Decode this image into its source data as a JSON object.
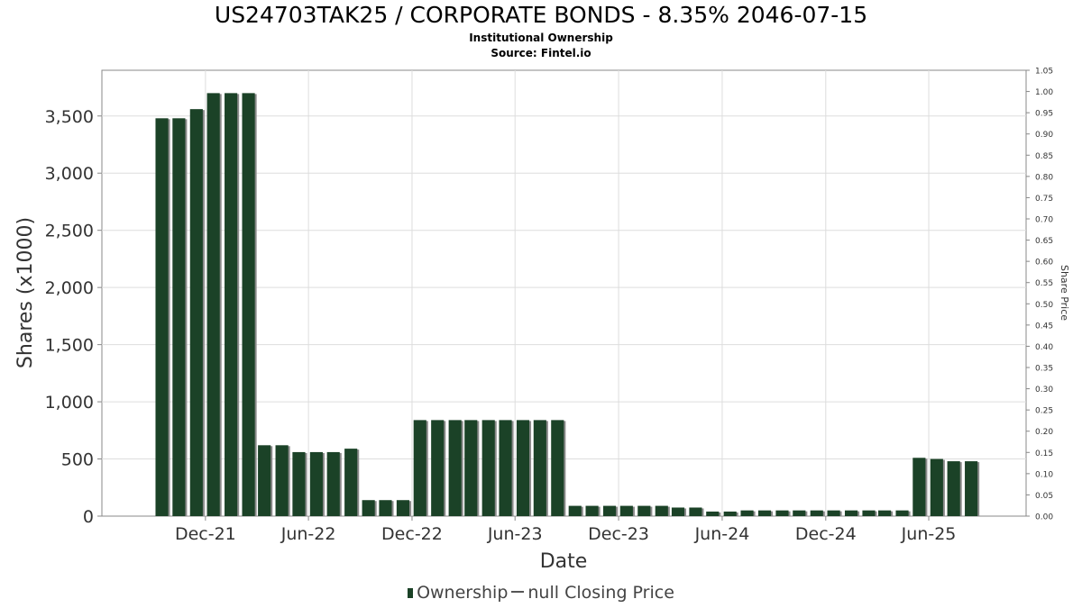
{
  "title": "US24703TAK25 / CORPORATE BONDS - 8.35% 2046-07-15",
  "subtitle": "Institutional Ownership",
  "source": "Source: Fintel.io",
  "legend": {
    "ownership": "Ownership",
    "price": "null Closing Price"
  },
  "colors": {
    "bar": "#1b4227",
    "bar_shadow": "#8a8a8a",
    "grid": "#dddddd",
    "axis": "#888888"
  },
  "chart_data": {
    "type": "bar",
    "title": "US24703TAK25 / CORPORATE BONDS - 8.35% 2046-07-15",
    "xlabel": "Date",
    "ylabel": "Shares (x1000)",
    "y2label": "Share Price",
    "ylim": [
      0,
      3900
    ],
    "y2lim": [
      0,
      1.05
    ],
    "grid": true,
    "legend_position": "bottom",
    "y_ticks": [
      {
        "value": 0,
        "label": "0"
      },
      {
        "value": 500,
        "label": "500"
      },
      {
        "value": 1000,
        "label": "1,000"
      },
      {
        "value": 1500,
        "label": "1,500"
      },
      {
        "value": 2000,
        "label": "2,000"
      },
      {
        "value": 2500,
        "label": "2,500"
      },
      {
        "value": 3000,
        "label": "3,000"
      },
      {
        "value": 3500,
        "label": "3,500"
      }
    ],
    "y2_ticks": [
      "0.00",
      "0.05",
      "0.10",
      "0.15",
      "0.20",
      "0.25",
      "0.30",
      "0.35",
      "0.40",
      "0.45",
      "0.50",
      "0.55",
      "0.60",
      "0.65",
      "0.70",
      "0.75",
      "0.80",
      "0.85",
      "0.90",
      "0.95",
      "1.00",
      "1.05"
    ],
    "x_range": [
      "2021-06-01",
      "2025-11-20"
    ],
    "x_ticks": [
      {
        "date": "2021-12-01",
        "label": "Dec-21"
      },
      {
        "date": "2022-06-01",
        "label": "Jun-22"
      },
      {
        "date": "2022-12-01",
        "label": "Dec-22"
      },
      {
        "date": "2023-06-01",
        "label": "Jun-23"
      },
      {
        "date": "2023-12-01",
        "label": "Dec-23"
      },
      {
        "date": "2024-06-01",
        "label": "Jun-24"
      },
      {
        "date": "2024-12-01",
        "label": "Dec-24"
      },
      {
        "date": "2025-06-01",
        "label": "Jun-25"
      }
    ],
    "series": [
      {
        "name": "Ownership",
        "points": [
          {
            "x": "2021-09-15",
            "y": 3480
          },
          {
            "x": "2021-10-15",
            "y": 3480
          },
          {
            "x": "2021-11-15",
            "y": 3560
          },
          {
            "x": "2021-12-15",
            "y": 3700
          },
          {
            "x": "2022-01-15",
            "y": 3700
          },
          {
            "x": "2022-02-15",
            "y": 3700
          },
          {
            "x": "2022-03-15",
            "y": 620
          },
          {
            "x": "2022-04-15",
            "y": 620
          },
          {
            "x": "2022-05-15",
            "y": 560
          },
          {
            "x": "2022-06-15",
            "y": 560
          },
          {
            "x": "2022-07-15",
            "y": 560
          },
          {
            "x": "2022-08-15",
            "y": 590
          },
          {
            "x": "2022-09-15",
            "y": 140
          },
          {
            "x": "2022-10-15",
            "y": 140
          },
          {
            "x": "2022-11-15",
            "y": 140
          },
          {
            "x": "2022-12-15",
            "y": 840
          },
          {
            "x": "2023-01-15",
            "y": 840
          },
          {
            "x": "2023-02-15",
            "y": 840
          },
          {
            "x": "2023-03-15",
            "y": 840
          },
          {
            "x": "2023-04-15",
            "y": 840
          },
          {
            "x": "2023-05-15",
            "y": 840
          },
          {
            "x": "2023-06-15",
            "y": 840
          },
          {
            "x": "2023-07-15",
            "y": 840
          },
          {
            "x": "2023-08-15",
            "y": 840
          },
          {
            "x": "2023-09-15",
            "y": 90
          },
          {
            "x": "2023-10-15",
            "y": 90
          },
          {
            "x": "2023-11-15",
            "y": 90
          },
          {
            "x": "2023-12-15",
            "y": 90
          },
          {
            "x": "2024-01-15",
            "y": 90
          },
          {
            "x": "2024-02-15",
            "y": 90
          },
          {
            "x": "2024-03-15",
            "y": 75
          },
          {
            "x": "2024-04-15",
            "y": 75
          },
          {
            "x": "2024-05-15",
            "y": 40
          },
          {
            "x": "2024-06-15",
            "y": 40
          },
          {
            "x": "2024-07-15",
            "y": 50
          },
          {
            "x": "2024-08-15",
            "y": 50
          },
          {
            "x": "2024-09-15",
            "y": 50
          },
          {
            "x": "2024-10-15",
            "y": 50
          },
          {
            "x": "2024-11-15",
            "y": 50
          },
          {
            "x": "2024-12-15",
            "y": 50
          },
          {
            "x": "2025-01-15",
            "y": 50
          },
          {
            "x": "2025-02-15",
            "y": 50
          },
          {
            "x": "2025-03-15",
            "y": 50
          },
          {
            "x": "2025-04-15",
            "y": 50
          },
          {
            "x": "2025-05-15",
            "y": 510
          },
          {
            "x": "2025-06-15",
            "y": 500
          },
          {
            "x": "2025-07-15",
            "y": 480
          },
          {
            "x": "2025-08-15",
            "y": 480
          }
        ]
      },
      {
        "name": "null Closing Price",
        "points": []
      }
    ]
  }
}
